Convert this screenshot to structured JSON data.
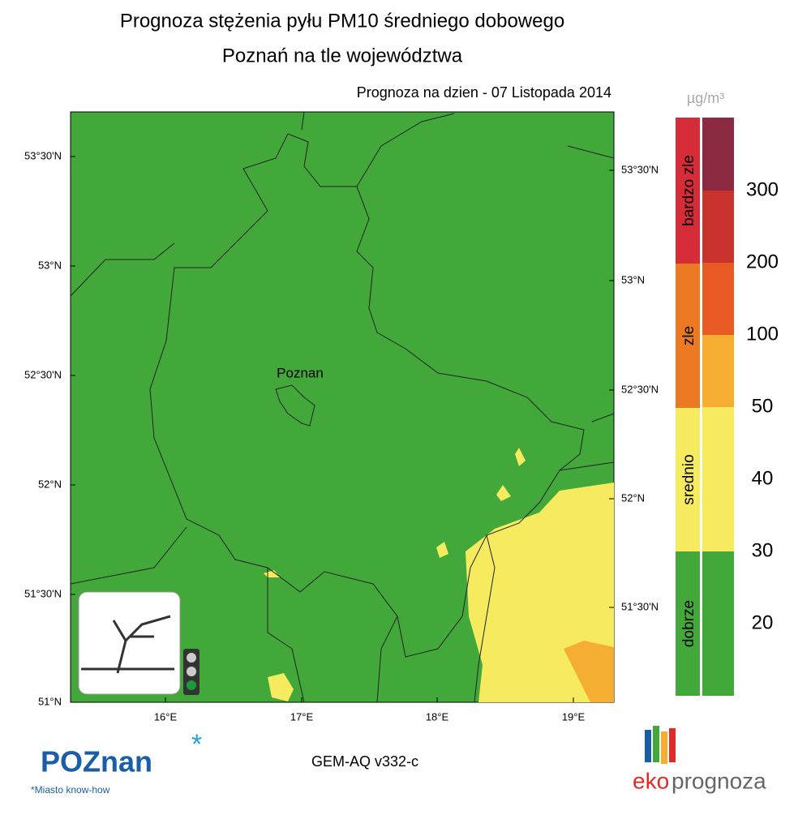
{
  "header": {
    "title_line1": "Prognoza stężenia pyłu PM10 średniego dobowego",
    "title_line2": "Poznań na tle województwa",
    "forecast_date": "Prognoza na dzien -  07 Listopada 2014"
  },
  "map": {
    "city_label": "Poznan",
    "lat_labels_left": [
      "53°30'N",
      "53°N",
      "52°30'N",
      "52°N",
      "51°30'N",
      "51°N"
    ],
    "lat_labels_right": [
      "53°30'N",
      "53°N",
      "52°30'N",
      "52°N",
      "51°30'N"
    ],
    "lon_labels": [
      "16°E",
      "17°E",
      "18°E",
      "19°E"
    ]
  },
  "legend": {
    "unit": "µg/m³",
    "categories": [
      "bardzo zle",
      "zle",
      "srednio",
      "dobrze"
    ],
    "levels": [
      300,
      200,
      100,
      50,
      40,
      30,
      20
    ]
  },
  "footer": {
    "model": "GEM-AQ v332-c",
    "logo_poznan": "POZnan",
    "logo_tagline": "*Miasto know-how",
    "logo_eko": "eko",
    "logo_prognoza": "prognoza"
  }
}
